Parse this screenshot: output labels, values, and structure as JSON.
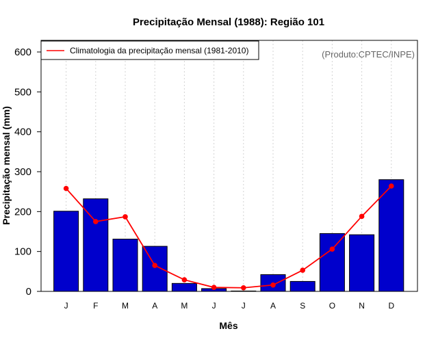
{
  "chart_data": {
    "type": "bar",
    "title": "Precipitação Mensal (1988): Região 101",
    "xlabel": "Mês",
    "ylabel": "Precipitação mensal (mm)",
    "ylim": [
      0,
      600
    ],
    "yticks": [
      0,
      100,
      200,
      300,
      400,
      500,
      600
    ],
    "categories": [
      "J",
      "F",
      "M",
      "A",
      "M",
      "J",
      "J",
      "A",
      "S",
      "O",
      "N",
      "D"
    ],
    "series": [
      {
        "name": "Precipitação mensal (1988)",
        "kind": "bar",
        "color": "#0000CC",
        "values": [
          201,
          232,
          131,
          113,
          20,
          7,
          1,
          42,
          25,
          145,
          142,
          280
        ]
      },
      {
        "name": "Climatologia da precipitação mensal (1981-2010)",
        "kind": "line",
        "color": "#FF0000",
        "values": [
          258,
          175,
          187,
          65,
          29,
          10,
          9,
          16,
          53,
          106,
          188,
          264
        ]
      }
    ],
    "legend": {
      "position": "top-left",
      "entries": [
        "Climatologia da precipitação mensal (1981-2010)"
      ]
    },
    "annotation": "(Produto:CPTEC/INPE)",
    "grid": "vertical-dotted"
  }
}
